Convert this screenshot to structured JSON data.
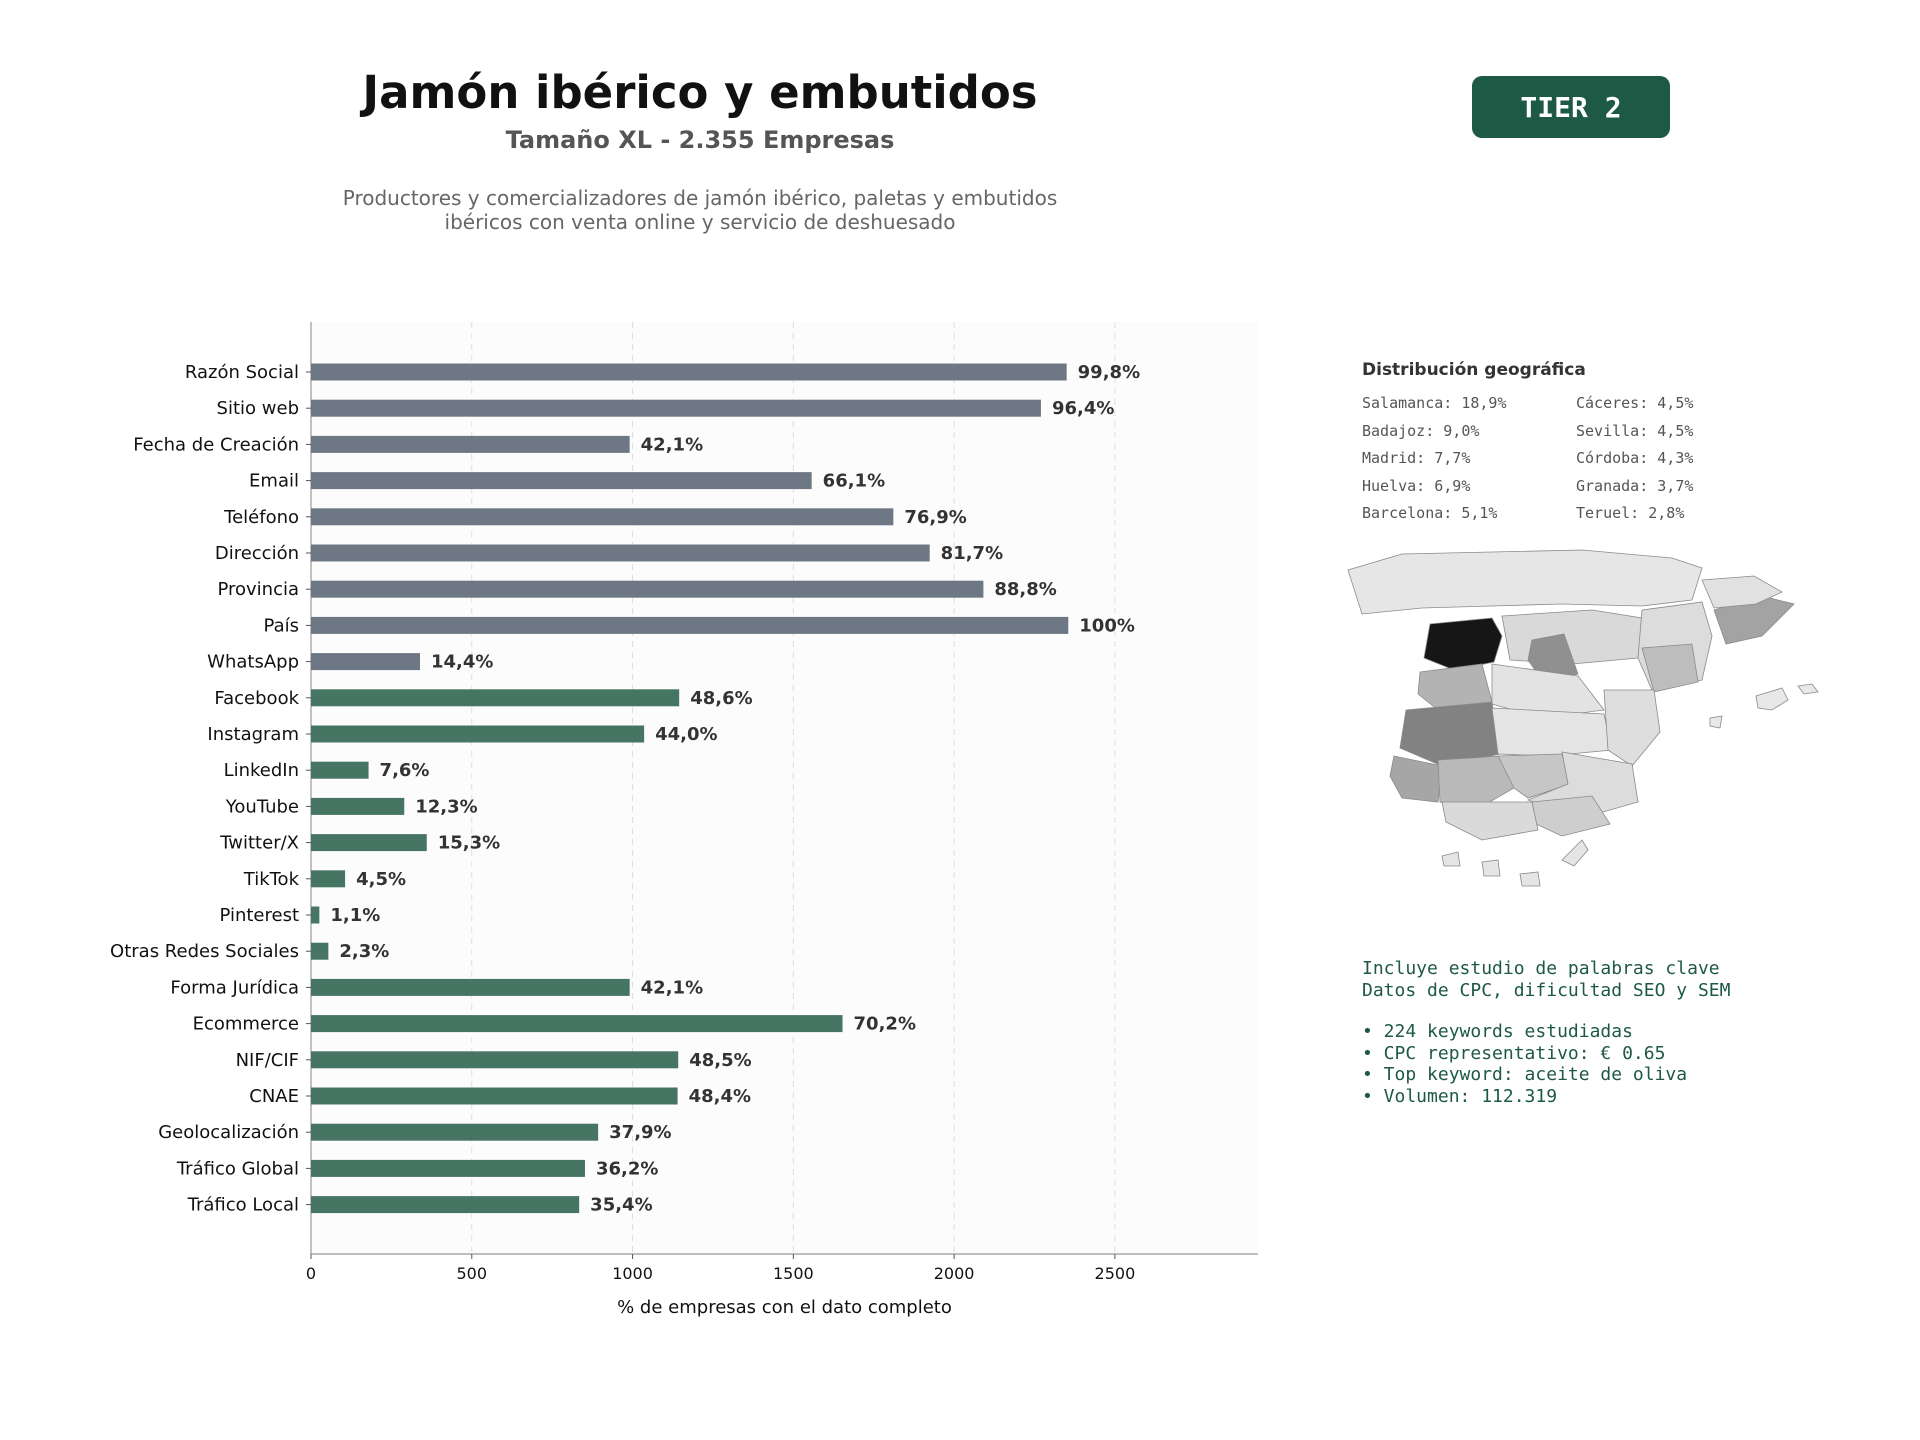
{
  "header": {
    "title": "Jamón ibérico y embutidos",
    "subtitle": "Tamaño XL - 2.355 Empresas",
    "description_line1": "Productores y comercializadores de jamón ibérico, paletas y embutidos",
    "description_line2": "ibéricos con venta online y servicio de deshuesado",
    "tier": "TIER 2"
  },
  "colors": {
    "gray_bar": "#6e7884",
    "green_bar": "#477563",
    "accent": "#1d5944"
  },
  "chart_data": {
    "type": "bar",
    "orientation": "horizontal",
    "xlabel": "% de empresas con el dato completo",
    "xlim": [
      0,
      2945
    ],
    "xticks": [
      0,
      500,
      1000,
      1500,
      2000,
      2500
    ],
    "grid": true,
    "categories": [
      "Razón Social",
      "Sitio web",
      "Fecha de Creación",
      "Email",
      "Teléfono",
      "Dirección",
      "Provincia",
      "País",
      "WhatsApp",
      "Facebook",
      "Instagram",
      "LinkedIn",
      "YouTube",
      "Twitter/X",
      "TikTok",
      "Pinterest",
      "Otras Redes Sociales",
      "Forma Jurídica",
      "Ecommerce",
      "NIF/CIF",
      "CNAE",
      "Geolocalización",
      "Tráfico Global",
      "Tráfico Local"
    ],
    "values": [
      2350,
      2270,
      991,
      1557,
      1811,
      1924,
      2091,
      2355,
      339,
      1145,
      1036,
      179,
      290,
      360,
      106,
      26,
      54,
      991,
      1653,
      1142,
      1140,
      893,
      852,
      834
    ],
    "labels": [
      "99,8%",
      "96,4%",
      "42,1%",
      "66,1%",
      "76,9%",
      "81,7%",
      "88,8%",
      "100%",
      "14,4%",
      "48,6%",
      "44,0%",
      "7,6%",
      "12,3%",
      "15,3%",
      "4,5%",
      "1,1%",
      "2,3%",
      "42,1%",
      "70,2%",
      "48,5%",
      "48,4%",
      "37,9%",
      "36,2%",
      "35,4%"
    ],
    "groups": [
      "gray",
      "gray",
      "gray",
      "gray",
      "gray",
      "gray",
      "gray",
      "gray",
      "gray",
      "green",
      "green",
      "green",
      "green",
      "green",
      "green",
      "green",
      "green",
      "green",
      "green",
      "green",
      "green",
      "green",
      "green",
      "green"
    ]
  },
  "geo": {
    "title": "Distribución geográfica",
    "items": [
      "Salamanca: 18,9%",
      "Cáceres: 4,5%",
      "Badajoz: 9,0%",
      "Sevilla: 4,5%",
      "Madrid: 7,7%",
      "Córdoba: 4,3%",
      "Huelva: 6,9%",
      "Granada: 3,7%",
      "Barcelona: 5,1%",
      "Teruel: 2,8%"
    ]
  },
  "keywords": {
    "line1": "Incluye estudio de palabras clave",
    "line2": "Datos de CPC, dificultad SEO y SEM",
    "bullets": [
      "• 224 keywords estudiadas",
      "• CPC representativo: € 0.65",
      "• Top keyword: aceite de oliva",
      "• Volumen: 112.319"
    ]
  }
}
